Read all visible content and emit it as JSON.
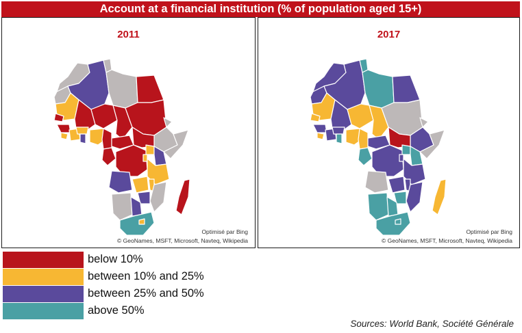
{
  "title": "Account at a financial institution (% of population aged 15+)",
  "colors": {
    "below_10": "#b8141c",
    "10_25": "#f7b733",
    "25_50": "#5a4a9c",
    "above_50": "#4aa0a4",
    "no_data": "#bdb8b8",
    "title_bg": "#c0121b"
  },
  "maps": [
    {
      "year": "2011",
      "attribution_line1": "Optimisé par Bing",
      "attribution_line2": "© GeoNames, MSFT, Microsoft, Navteq, Wikipedia"
    },
    {
      "year": "2017",
      "attribution_line1": "Optimisé par Bing",
      "attribution_line2": "© GeoNames, MSFT, Microsoft, Navteq, Wikipedia"
    }
  ],
  "legend": [
    {
      "label": "below 10%",
      "color": "#b8141c"
    },
    {
      "label": "between 10% and 25%",
      "color": "#f7b733"
    },
    {
      "label": "between 25% and 50%",
      "color": "#5a4a9c"
    },
    {
      "label": "above 50%",
      "color": "#4aa0a4"
    }
  ],
  "sources": "Sources: World Bank, Société Générale"
}
